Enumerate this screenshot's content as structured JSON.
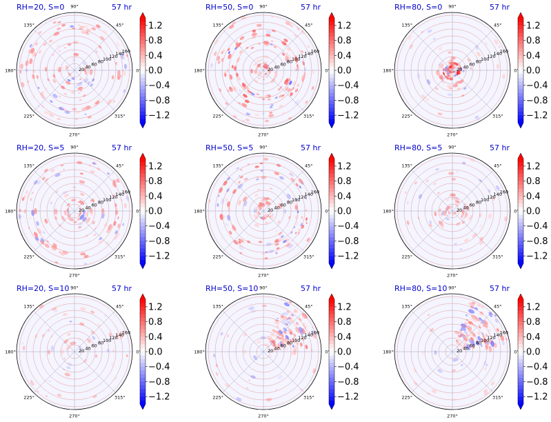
{
  "colors": {
    "title": "#0000cc",
    "positive": "#ff0000",
    "negative": "#0000ff",
    "circle_grid": "#e08080",
    "spoke_grid": "#9090b0",
    "background_tint": "#f4f5ff"
  },
  "chart_data": {
    "type": "heatmap",
    "subtype": "polar",
    "layout": "3x3 grid",
    "panels": [
      {
        "label": "RH=20, S=0",
        "time": "57 hr",
        "pattern": "scattered ring"
      },
      {
        "label": "RH=50, S=0",
        "time": "57 hr",
        "pattern": "strong ring"
      },
      {
        "label": "RH=80, S=0",
        "time": "57 hr",
        "pattern": "central core"
      },
      {
        "label": "RH=20, S=5",
        "time": "57 hr",
        "pattern": "scattered ring"
      },
      {
        "label": "RH=50, S=5",
        "time": "57 hr",
        "pattern": "ring"
      },
      {
        "label": "RH=80, S=5",
        "time": "57 hr",
        "pattern": "weak core"
      },
      {
        "label": "RH=20, S=10",
        "time": "57 hr",
        "pattern": "weak scattered"
      },
      {
        "label": "RH=50, S=10",
        "time": "57 hr",
        "pattern": "northeast sector"
      },
      {
        "label": "RH=80, S=10",
        "time": "57 hr",
        "pattern": "northeast sector"
      }
    ],
    "angular_ticks": [
      "0°",
      "45°",
      "90°",
      "135°",
      "180°",
      "225°",
      "270°",
      "315°"
    ],
    "radial_ticks": [
      "20",
      "40",
      "60",
      "80",
      "100",
      "120",
      "140",
      "160"
    ],
    "colorbar": {
      "colormap": "bwr",
      "extend": "both",
      "range": [
        -1.4,
        1.4
      ],
      "ticks": [
        "1.2",
        "0.8",
        "0.4",
        "0.0",
        "−0.4",
        "−0.8",
        "−1.2"
      ],
      "tick_values": [
        1.2,
        0.8,
        0.4,
        0.0,
        -0.4,
        -0.8,
        -1.2
      ]
    }
  }
}
